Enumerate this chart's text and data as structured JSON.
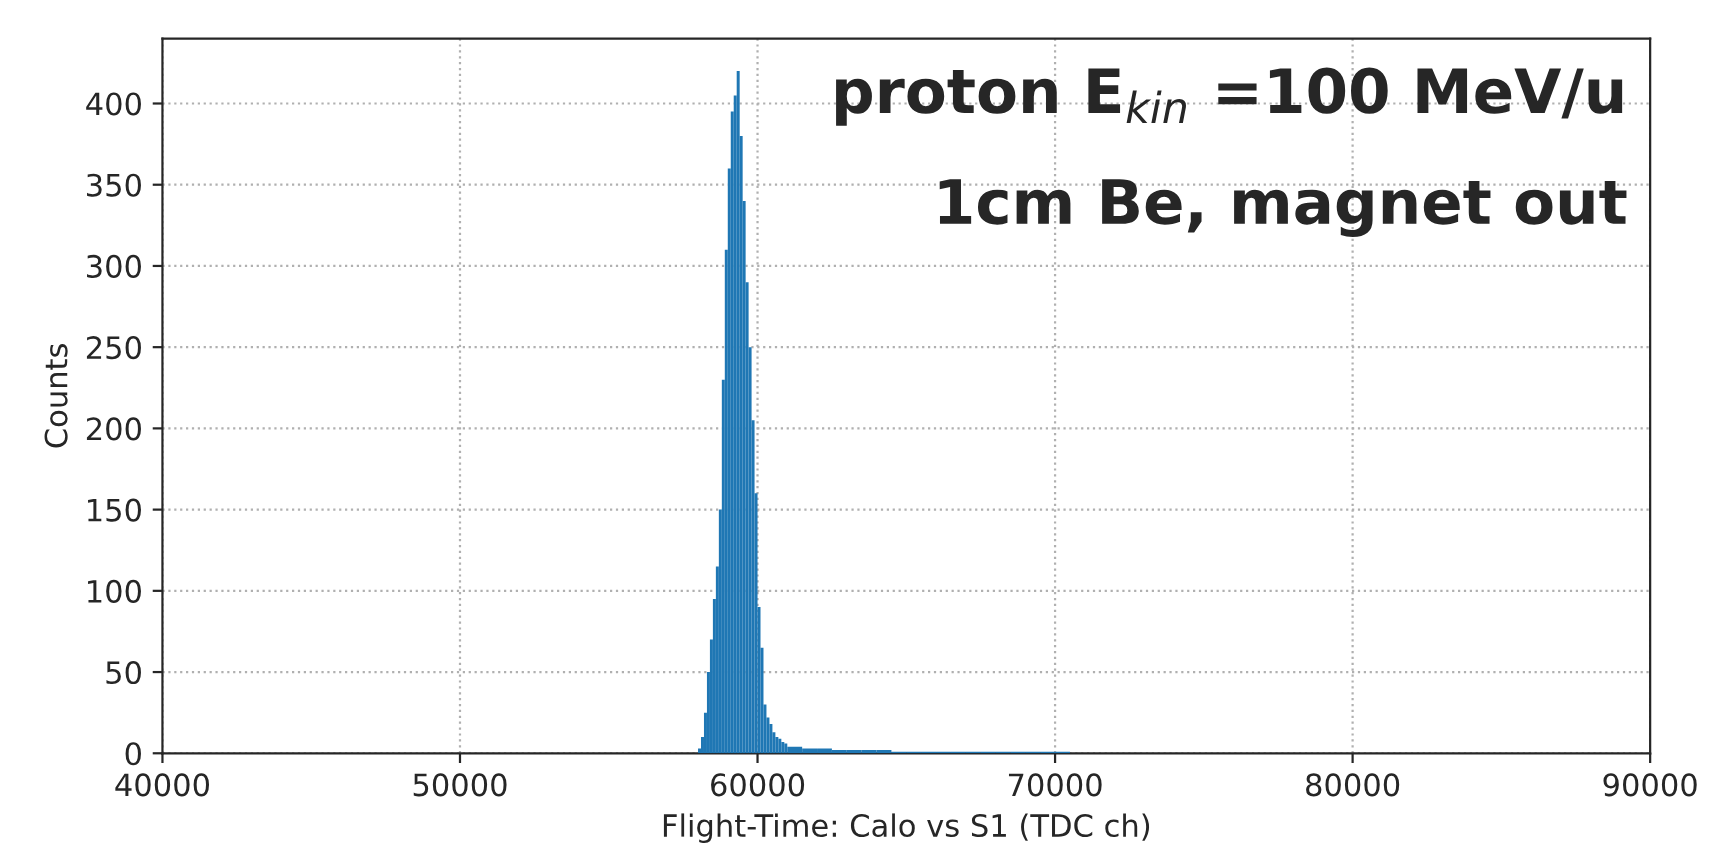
{
  "chart_data": {
    "type": "histogram",
    "xlabel": "Flight-Time: Calo vs S1 (TDC ch)",
    "ylabel": "Counts",
    "annotations": [
      "proton E$_{kin}$ =100 MeV/u",
      "1cm Be, magnet out"
    ],
    "bins": [
      58000,
      58100,
      58200,
      58300,
      58400,
      58500,
      58600,
      58700,
      58800,
      58900,
      59000,
      59100,
      59200,
      59300,
      59400,
      59500,
      59600,
      59700,
      59800,
      59900,
      60000,
      60100,
      60200,
      60300,
      60400,
      60500,
      60600,
      60700,
      60800,
      60900,
      61000,
      61500,
      62000,
      62500,
      63000,
      63500,
      64000,
      64500,
      65000,
      65500,
      66000,
      66500,
      67000,
      67500,
      68000,
      68500,
      69000,
      69500,
      70000,
      70500
    ],
    "values": [
      3,
      10,
      25,
      50,
      70,
      95,
      115,
      150,
      230,
      310,
      360,
      395,
      405,
      420,
      380,
      340,
      290,
      250,
      205,
      160,
      90,
      65,
      30,
      22,
      18,
      13,
      10,
      9,
      7,
      6,
      4,
      3,
      3,
      2,
      2,
      2,
      2,
      1,
      1,
      1,
      1,
      1,
      1,
      1,
      1,
      1,
      1,
      1,
      1
    ],
    "color": "#1f77b4",
    "xlim": [
      40000,
      90000
    ],
    "xticks": [
      40000,
      50000,
      60000,
      70000,
      80000,
      90000
    ],
    "ylim": [
      0,
      440
    ],
    "yticks": [
      0,
      50,
      100,
      150,
      200,
      250,
      300,
      350,
      400
    ],
    "grid": true,
    "legend": false
  }
}
